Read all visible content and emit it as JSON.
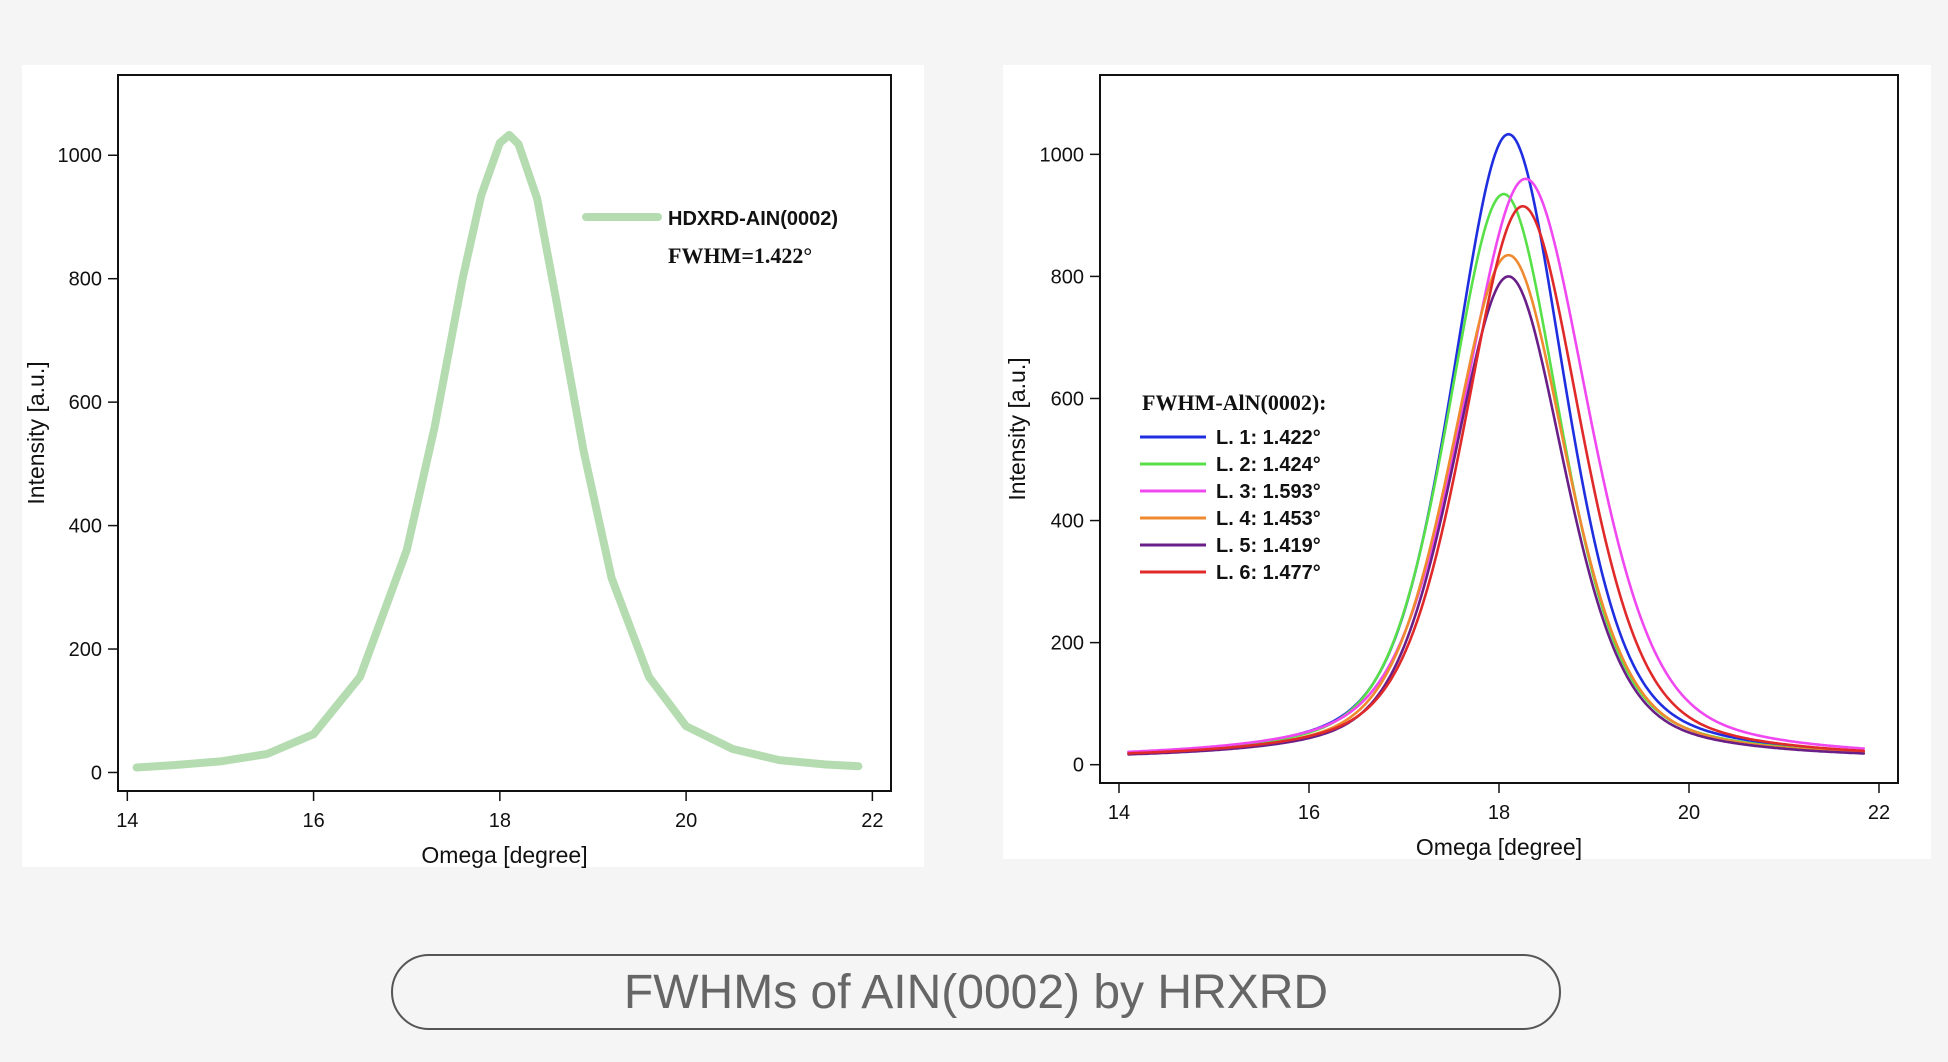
{
  "caption": "FWHMs of AIN(0002) by HRXRD",
  "chart_data": [
    {
      "type": "line",
      "xlabel": "Omega [degree]",
      "ylabel": "Intensity [a.u.]",
      "xlim": [
        13.9,
        22.2
      ],
      "ylim": [
        -30,
        1130
      ],
      "xticks": [
        14,
        16,
        18,
        20,
        22
      ],
      "yticks": [
        0,
        200,
        400,
        600,
        800,
        1000
      ],
      "grid": false,
      "legend_position": "top-right",
      "legend_note": "FWHM=1.422°",
      "series": [
        {
          "name": "HDXRD-AIN(0002)",
          "color": "#b5dcb0",
          "peak_x": 18.1,
          "peak_y": 1033,
          "fwhm": 1.422,
          "baseline": 5,
          "x": [
            14.1,
            14.5,
            15.0,
            15.5,
            16.0,
            16.5,
            17.0,
            17.3,
            17.6,
            17.8,
            18.0,
            18.1,
            18.2,
            18.4,
            18.6,
            18.9,
            19.2,
            19.6,
            20.0,
            20.5,
            21.0,
            21.5,
            21.85
          ],
          "y": [
            8,
            12,
            18,
            30,
            62,
            155,
            360,
            560,
            800,
            935,
            1020,
            1033,
            1018,
            930,
            770,
            520,
            315,
            155,
            75,
            38,
            20,
            13,
            10
          ]
        }
      ]
    },
    {
      "type": "line",
      "xlabel": "Omega [degree]",
      "ylabel": "Intensity [a.u.]",
      "xlim": [
        13.8,
        22.2
      ],
      "ylim": [
        -30,
        1130
      ],
      "xticks": [
        14,
        16,
        18,
        20,
        22
      ],
      "yticks": [
        0,
        200,
        400,
        600,
        800,
        1000
      ],
      "grid": false,
      "legend_title": "FWHM-AlN(0002):",
      "legend_position": "left",
      "series": [
        {
          "name": "L. 1: 1.422°",
          "color": "#1f2fe0",
          "peak_x": 18.1,
          "peak_y": 1033,
          "fwhm": 1.422,
          "baseline": 6
        },
        {
          "name": "L. 2: 1.424°",
          "color": "#58e048",
          "peak_x": 18.05,
          "peak_y": 935,
          "fwhm": 1.424,
          "baseline": 6
        },
        {
          "name": "L. 3: 1.593°",
          "color": "#f048f0",
          "peak_x": 18.28,
          "peak_y": 960,
          "fwhm": 1.593,
          "baseline": 6
        },
        {
          "name": "L. 4: 1.453°",
          "color": "#f08a30",
          "peak_x": 18.1,
          "peak_y": 835,
          "fwhm": 1.453,
          "baseline": 6
        },
        {
          "name": "L. 5: 1.419°",
          "color": "#6a1f88",
          "peak_x": 18.1,
          "peak_y": 800,
          "fwhm": 1.419,
          "baseline": 6
        },
        {
          "name": "L. 6: 1.477°",
          "color": "#e02a2a",
          "peak_x": 18.25,
          "peak_y": 915,
          "fwhm": 1.477,
          "baseline": 6
        }
      ]
    }
  ]
}
